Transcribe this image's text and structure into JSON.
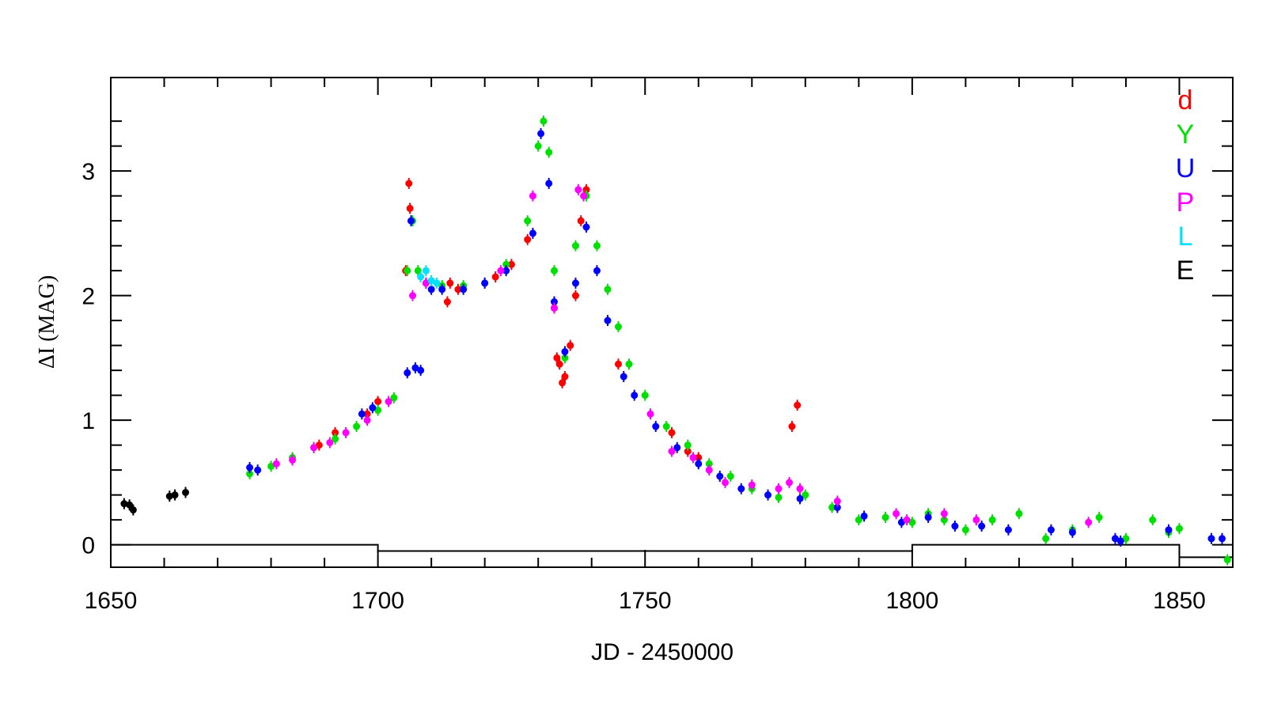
{
  "chart_data": {
    "type": "scatter",
    "xlabel": "JD - 2450000",
    "ylabel": "ΔI (MAG)",
    "xlim": [
      1650,
      1860
    ],
    "ylim": [
      -0.18,
      3.75
    ],
    "x_ticks": [
      1650,
      1700,
      1750,
      1800,
      1850
    ],
    "y_ticks": [
      0,
      1,
      2,
      3
    ],
    "grid": false,
    "legend_position": "top-right",
    "baseline_steps": [
      [
        1650,
        0
      ],
      [
        1700,
        0
      ],
      [
        1700,
        -0.05
      ],
      [
        1800,
        -0.05
      ],
      [
        1800,
        0
      ],
      [
        1850,
        0
      ],
      [
        1850,
        -0.1
      ],
      [
        1860,
        -0.1
      ]
    ],
    "series": [
      {
        "name": "d",
        "color": "#ff0000",
        "x": [
          1705.2,
          1705.8,
          1706.0,
          1713.0,
          1713.5,
          1715.0,
          1722.0,
          1725.0,
          1728.0,
          1733.0,
          1733.5,
          1734.0,
          1734.5,
          1735.0,
          1736.0,
          1737.0,
          1738.0,
          1739.0,
          1745.0,
          1755.0,
          1758.0,
          1760.0,
          1777.5,
          1778.5,
          1700.0,
          1698.0,
          1689.0,
          1692.0
        ],
        "y": [
          2.2,
          2.9,
          2.7,
          1.95,
          2.1,
          2.05,
          2.15,
          2.25,
          2.45,
          1.9,
          1.5,
          1.45,
          1.3,
          1.35,
          1.6,
          2.0,
          2.6,
          2.85,
          1.45,
          0.9,
          0.75,
          0.7,
          0.95,
          1.12,
          1.15,
          1.05,
          0.8,
          0.9
        ]
      },
      {
        "name": "Y",
        "color": "#00e000",
        "x": [
          1676,
          1680,
          1684,
          1688,
          1692,
          1696,
          1700,
          1703,
          1705.5,
          1706.5,
          1707.5,
          1712,
          1716,
          1720,
          1724,
          1728,
          1730,
          1731,
          1732,
          1733,
          1735,
          1737,
          1739,
          1741,
          1743,
          1745,
          1747,
          1750,
          1754,
          1758,
          1762,
          1766,
          1770,
          1775,
          1780,
          1785,
          1790,
          1795,
          1800,
          1803,
          1806,
          1810,
          1815,
          1820,
          1825,
          1830,
          1835,
          1840,
          1845,
          1848,
          1850,
          1856,
          1859
        ],
        "y": [
          0.57,
          0.63,
          0.7,
          0.78,
          0.85,
          0.95,
          1.08,
          1.18,
          2.2,
          2.6,
          2.2,
          2.08,
          2.08,
          2.1,
          2.25,
          2.6,
          3.2,
          3.4,
          3.15,
          2.2,
          1.5,
          2.4,
          2.8,
          2.4,
          2.05,
          1.75,
          1.45,
          1.2,
          0.95,
          0.8,
          0.65,
          0.55,
          0.45,
          0.38,
          0.4,
          0.3,
          0.2,
          0.22,
          0.18,
          0.25,
          0.2,
          0.12,
          0.2,
          0.25,
          0.05,
          0.12,
          0.22,
          0.05,
          0.2,
          0.1,
          0.13,
          0.05,
          -0.12
        ]
      },
      {
        "name": "U",
        "color": "#0000ff",
        "x": [
          1676,
          1677.5,
          1697,
          1699,
          1705.5,
          1706.2,
          1707,
          1708,
          1709,
          1710,
          1712,
          1716,
          1720,
          1724,
          1729,
          1730.5,
          1732,
          1733,
          1735,
          1737,
          1739,
          1741,
          1743,
          1746,
          1748,
          1752,
          1756,
          1760,
          1764,
          1768,
          1773,
          1779,
          1786,
          1791,
          1798,
          1803,
          1808,
          1813,
          1818,
          1826,
          1830,
          1838,
          1839,
          1848,
          1856,
          1858
        ],
        "y": [
          0.62,
          0.6,
          1.05,
          1.1,
          1.38,
          2.6,
          1.42,
          1.4,
          2.1,
          2.05,
          2.05,
          2.05,
          2.1,
          2.2,
          2.5,
          3.3,
          2.9,
          1.95,
          1.55,
          2.1,
          2.55,
          2.2,
          1.8,
          1.35,
          1.2,
          0.95,
          0.78,
          0.65,
          0.55,
          0.45,
          0.4,
          0.37,
          0.3,
          0.23,
          0.18,
          0.22,
          0.15,
          0.15,
          0.12,
          0.12,
          0.1,
          0.05,
          0.03,
          0.12,
          0.05,
          0.05
        ]
      },
      {
        "name": "P",
        "color": "#ff00ff",
        "x": [
          1681,
          1684,
          1688,
          1691,
          1694,
          1698,
          1702,
          1706.5,
          1709,
          1723,
          1729,
          1733,
          1737.5,
          1738.5,
          1751,
          1755,
          1759,
          1762,
          1765,
          1770,
          1775,
          1777,
          1779,
          1786,
          1797,
          1799,
          1806,
          1812,
          1833
        ],
        "y": [
          0.65,
          0.68,
          0.78,
          0.82,
          0.9,
          1.0,
          1.15,
          2.0,
          2.1,
          2.2,
          2.8,
          1.9,
          2.85,
          2.8,
          1.05,
          0.75,
          0.7,
          0.6,
          0.5,
          0.48,
          0.45,
          0.5,
          0.45,
          0.35,
          0.25,
          0.2,
          0.25,
          0.2,
          0.18
        ]
      },
      {
        "name": "L",
        "color": "#00e0ff",
        "x": [
          1708,
          1709,
          1710,
          1711
        ],
        "y": [
          2.15,
          2.2,
          2.12,
          2.1
        ]
      },
      {
        "name": "E",
        "color": "#000000",
        "x": [
          1652.5,
          1653.5,
          1654.2,
          1661,
          1662,
          1664
        ],
        "y": [
          0.33,
          0.32,
          0.28,
          0.39,
          0.4,
          0.42
        ]
      }
    ]
  }
}
